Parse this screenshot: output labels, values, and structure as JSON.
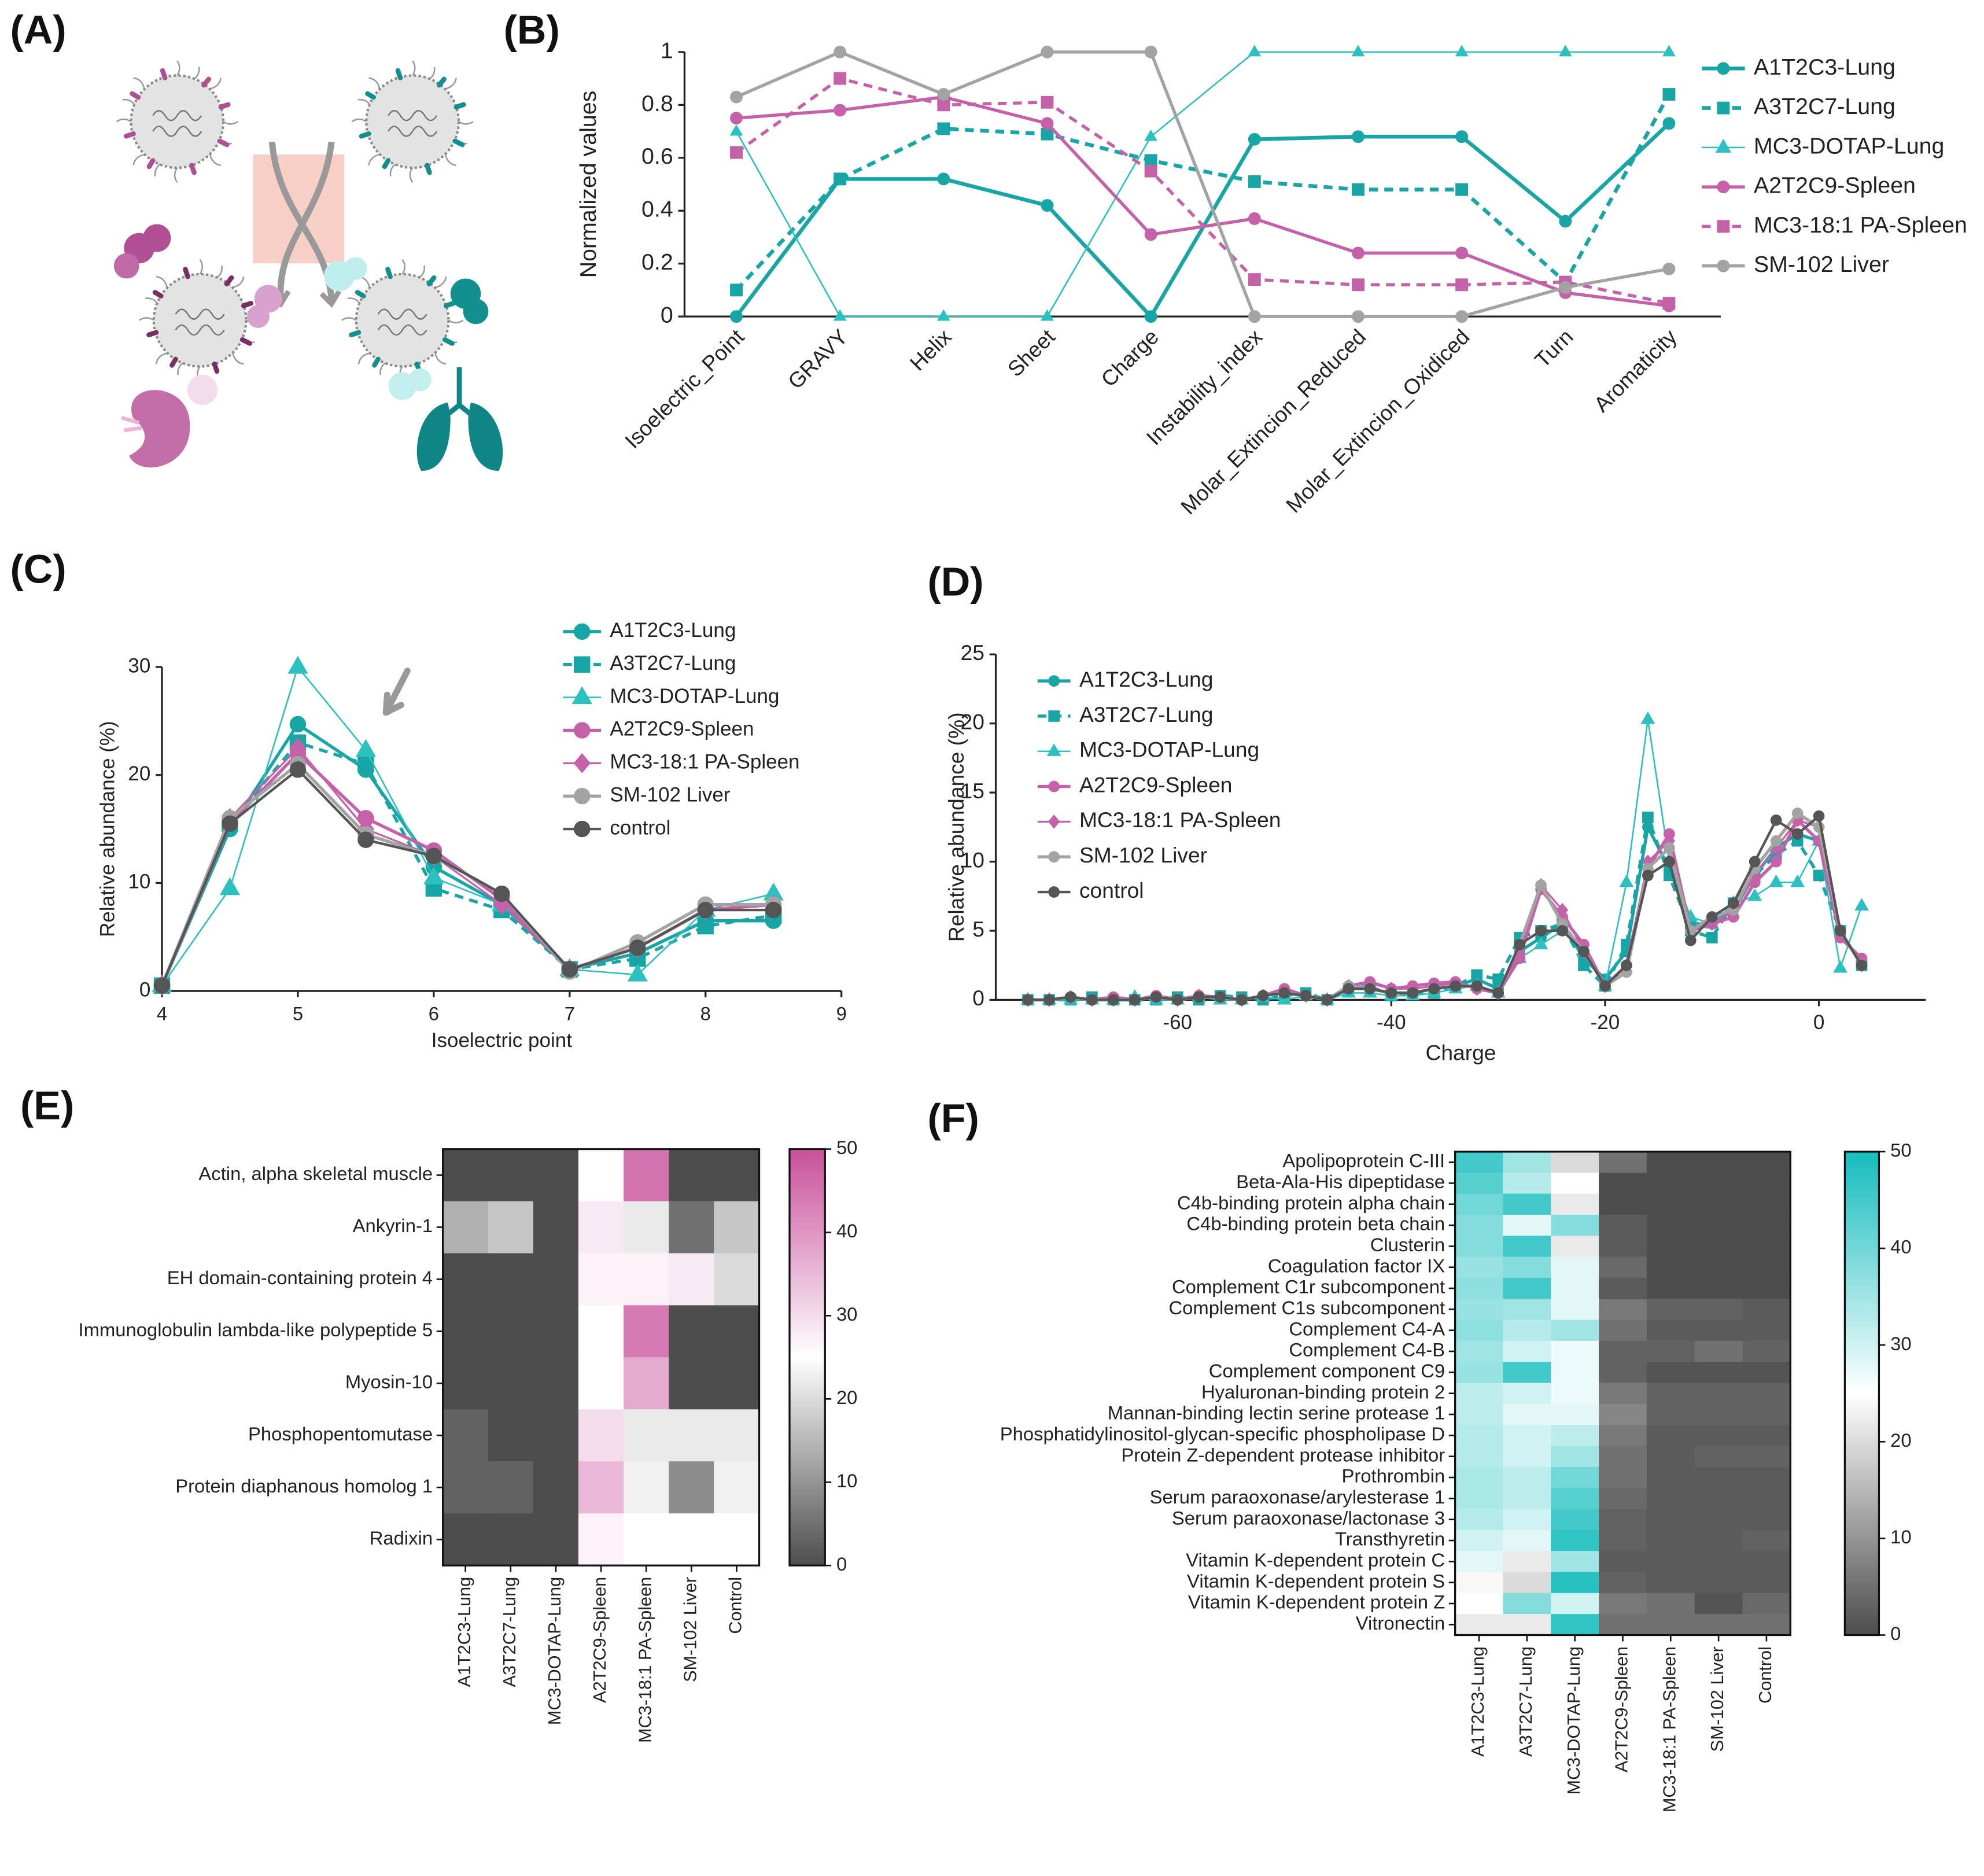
{
  "illustration": {
    "panel": "(A)"
  },
  "chart_data": [
    {
      "panel": "(B)",
      "type": "line",
      "y_label": "Normalized values",
      "categories": [
        "Isoelectric_Point",
        "GRAVY",
        "Helix",
        "Sheet",
        "Charge",
        "Instability_index",
        "Molar_Extincion_Reduced",
        "Molar_Extincion_Oxidiced",
        "Turn",
        "Aromaticity"
      ],
      "ylim": [
        0,
        1
      ],
      "yticks": [
        0,
        0.2,
        0.4,
        0.6,
        0.8,
        1
      ],
      "legend": "right",
      "series": [
        {
          "name": "A1T2C3-Lung",
          "color": "#17a5a5",
          "dash": "solid",
          "marker": "circle",
          "width": 3,
          "values": [
            0,
            0.52,
            0.52,
            0.42,
            0,
            0.67,
            0.68,
            0.68,
            0.36,
            0.73
          ]
        },
        {
          "name": "A3T2C7-Lung",
          "color": "#17a5a5",
          "dash": "dashed",
          "marker": "square",
          "width": 3,
          "values": [
            0.1,
            0.52,
            0.71,
            0.69,
            0.59,
            0.51,
            0.48,
            0.48,
            0.13,
            0.84
          ]
        },
        {
          "name": "MC3-DOTAP-Lung",
          "color": "#2cc0c0",
          "dash": "solid",
          "marker": "triangle",
          "width": 1.2,
          "values": [
            0.7,
            0,
            0,
            0,
            0.68,
            1,
            1,
            1,
            1,
            1
          ]
        },
        {
          "name": "A2T2C9-Spleen",
          "color": "#c461a8",
          "dash": "solid",
          "marker": "circle",
          "width": 2.5,
          "values": [
            0.75,
            0.78,
            0.83,
            0.73,
            0.31,
            0.37,
            0.24,
            0.24,
            0.09,
            0.04
          ]
        },
        {
          "name": "MC3-18:1 PA-Spleen",
          "color": "#c461a8",
          "dash": "dashed",
          "marker": "square",
          "width": 2.5,
          "values": [
            0.62,
            0.9,
            0.8,
            0.81,
            0.55,
            0.14,
            0.12,
            0.12,
            0.13,
            0.05
          ]
        },
        {
          "name": "SM-102 Liver",
          "color": "#a3a3a3",
          "dash": "solid",
          "marker": "circle",
          "width": 2.5,
          "values": [
            0.83,
            1,
            0.84,
            1,
            1,
            0,
            0,
            0,
            0.11,
            0.18
          ]
        }
      ]
    },
    {
      "panel": "(C)",
      "type": "line",
      "x_label": "Isoelectric point",
      "y_label": "Relative abundance (%)",
      "x": [
        4,
        4.5,
        5,
        5.5,
        6,
        6.5,
        7,
        7.5,
        8,
        8.5
      ],
      "xlim": [
        4,
        9
      ],
      "xticks": [
        4,
        5,
        6,
        7,
        8,
        9
      ],
      "ylim": [
        0,
        30
      ],
      "yticks": [
        0,
        10,
        20,
        30
      ],
      "legend": "upper right",
      "series": [
        {
          "name": "A1T2C3-Lung",
          "color": "#17a5a5",
          "dash": "solid",
          "marker": "circle",
          "width": 2.5,
          "values": [
            0.5,
            15,
            24.7,
            20.5,
            11.5,
            8,
            2,
            3.5,
            6.5,
            6.5
          ]
        },
        {
          "name": "A3T2C7-Lung",
          "color": "#17a5a5",
          "dash": "dashed",
          "marker": "square",
          "width": 2.5,
          "values": [
            0.5,
            15.5,
            23,
            21,
            9.5,
            7.5,
            2,
            3,
            6,
            7
          ]
        },
        {
          "name": "MC3-DOTAP-Lung",
          "color": "#2cc0c0",
          "dash": "solid",
          "marker": "triangle",
          "width": 1.2,
          "values": [
            0.5,
            9.5,
            30,
            22.3,
            10.5,
            8,
            2,
            1.5,
            7.5,
            9
          ]
        },
        {
          "name": "A2T2C9-Spleen",
          "color": "#c461a8",
          "dash": "solid",
          "marker": "circle",
          "width": 2.5,
          "values": [
            0.5,
            15.5,
            22,
            16,
            13,
            8.5,
            2,
            4,
            7.5,
            8
          ]
        },
        {
          "name": "MC3-18:1 PA-Spleen",
          "color": "#c461a8",
          "dash": "solid",
          "marker": "diamond",
          "width": 1.5,
          "values": [
            0.5,
            16,
            22.5,
            15,
            12.5,
            8,
            2,
            4,
            7.5,
            8
          ]
        },
        {
          "name": "SM-102 Liver",
          "color": "#a3a3a3",
          "dash": "solid",
          "marker": "circle",
          "width": 2.5,
          "values": [
            0.5,
            16,
            21,
            14.5,
            12.5,
            9,
            1.8,
            4.5,
            8,
            8
          ]
        },
        {
          "name": "control",
          "color": "#555555",
          "dash": "solid",
          "marker": "circle",
          "width": 2,
          "values": [
            0.5,
            15.5,
            20.5,
            14,
            12.5,
            9,
            2,
            4,
            7.5,
            7.5
          ]
        }
      ]
    },
    {
      "panel": "(D)",
      "type": "line",
      "x_label": "Charge",
      "y_label": "Relative abundance (%)",
      "x": [
        -74,
        -72,
        -70,
        -68,
        -66,
        -64,
        -62,
        -60,
        -58,
        -56,
        -54,
        -52,
        -50,
        -48,
        -46,
        -44,
        -42,
        -40,
        -38,
        -36,
        -34,
        -32,
        -30,
        -28,
        -26,
        -24,
        -22,
        -20,
        -18,
        -16,
        -14,
        -12,
        -10,
        -8,
        -6,
        -4,
        -2,
        0,
        2,
        4
      ],
      "xlim": [
        -77,
        10
      ],
      "xticks": [
        -60,
        -40,
        -20,
        0
      ],
      "ylim": [
        0,
        25
      ],
      "yticks": [
        0,
        5,
        10,
        15,
        20,
        25
      ],
      "legend": "upper left",
      "series": [
        {
          "name": "A1T2C3-Lung",
          "color": "#17a5a5",
          "dash": "solid",
          "marker": "circle",
          "width": 2.5,
          "values": [
            0,
            0,
            0.2,
            0,
            0,
            0,
            0.2,
            0,
            0.3,
            0.2,
            0,
            0.3,
            0.5,
            0.3,
            0,
            1,
            0.8,
            0.5,
            0.5,
            0.8,
            1,
            1.5,
            0.8,
            3.5,
            4.5,
            5.5,
            3,
            1.5,
            3.5,
            12.5,
            9.5,
            5.5,
            5.5,
            6.5,
            9,
            11,
            12,
            11.5,
            5,
            2.5
          ]
        },
        {
          "name": "A3T2C7-Lung",
          "color": "#17a5a5",
          "dash": "dashed",
          "marker": "square",
          "width": 2.5,
          "values": [
            0,
            0,
            0,
            0.2,
            0,
            0,
            0,
            0.2,
            0,
            0.3,
            0.2,
            0,
            0.3,
            0.5,
            0,
            0.8,
            1,
            0.3,
            0.5,
            0.5,
            1,
            1.8,
            1.5,
            4.5,
            5,
            5.5,
            2.5,
            1,
            4,
            13.2,
            9,
            5,
            4.5,
            7,
            9,
            10.5,
            11.5,
            9,
            5,
            2.5
          ]
        },
        {
          "name": "MC3-DOTAP-Lung",
          "color": "#2cc0c0",
          "dash": "solid",
          "marker": "triangle",
          "width": 1.2,
          "values": [
            0,
            0,
            0,
            0,
            0,
            0.2,
            0,
            0,
            0.2,
            0,
            0,
            0.2,
            0,
            0.3,
            0,
            0.5,
            0.5,
            0.3,
            0.3,
            0.5,
            0.8,
            1,
            0.5,
            3,
            4,
            5,
            3.5,
            1,
            8.5,
            20.3,
            10,
            6,
            5.5,
            7,
            7.5,
            8.5,
            8.5,
            11.5,
            2.3,
            6.8
          ]
        },
        {
          "name": "A2T2C9-Spleen",
          "color": "#c461a8",
          "dash": "solid",
          "marker": "circle",
          "width": 2.5,
          "values": [
            0,
            0,
            0.2,
            0,
            0.2,
            0,
            0.3,
            0,
            0.3,
            0.2,
            0,
            0.3,
            0.8,
            0.3,
            0,
            1,
            1.3,
            0.8,
            1,
            1.2,
            1.3,
            0.8,
            0.5,
            3,
            8,
            6,
            4,
            1,
            2.5,
            9.5,
            12,
            5,
            5.5,
            6,
            8.5,
            10,
            13,
            11.5,
            4.5,
            3
          ]
        },
        {
          "name": "MC3-18:1 PA-Spleen",
          "color": "#c461a8",
          "dash": "solid",
          "marker": "diamond",
          "width": 1.5,
          "values": [
            0,
            0,
            0.2,
            0,
            0,
            0,
            0.2,
            0,
            0.3,
            0.2,
            0,
            0.3,
            0.6,
            0.3,
            0,
            1,
            1.2,
            0.8,
            0.8,
            1,
            1.2,
            0.8,
            0.5,
            3.5,
            8.3,
            6.5,
            3.5,
            1,
            2.5,
            10,
            11.5,
            5,
            5.5,
            6.5,
            9,
            11,
            13,
            12.5,
            5,
            2.5
          ]
        },
        {
          "name": "SM-102 Liver",
          "color": "#a3a3a3",
          "dash": "solid",
          "marker": "circle",
          "width": 2.5,
          "values": [
            0,
            0,
            0.2,
            0,
            0,
            0,
            0.2,
            0,
            0.2,
            0.2,
            0,
            0.3,
            0.5,
            0.3,
            0,
            1,
            0.8,
            0.5,
            0.5,
            0.8,
            1,
            1,
            0.5,
            4,
            8.3,
            5.5,
            3.5,
            1,
            2,
            9.5,
            11,
            5,
            6,
            6.5,
            9.5,
            11.5,
            13.5,
            12.5,
            5,
            2.5
          ]
        },
        {
          "name": "control",
          "color": "#555555",
          "dash": "solid",
          "marker": "circle",
          "width": 2,
          "values": [
            0,
            0,
            0.2,
            0,
            0,
            0,
            0.2,
            0,
            0.2,
            0.2,
            0,
            0.3,
            0.5,
            0.3,
            0,
            0.8,
            0.8,
            0.5,
            0.5,
            0.8,
            1,
            1,
            0.5,
            4,
            5,
            5,
            3.5,
            1,
            2.5,
            9,
            10,
            4.3,
            6,
            7,
            10,
            13,
            12,
            13.3,
            5,
            2.5
          ]
        }
      ]
    },
    {
      "panel": "(E)",
      "type": "heatmap",
      "rows": [
        "Actin, alpha skeletal muscle",
        "Ankyrin-1",
        "EH domain-containing protein 4",
        "Immunoglobulin lambda-like polypeptide 5",
        "Myosin-10",
        "Phosphopentomutase",
        "Protein diaphanous homolog 1",
        "Radixin"
      ],
      "columns": [
        "A1T2C3-Lung",
        "A3T2C7-Lung",
        "MC3-DOTAP-Lung",
        "A2T2C9-Spleen",
        "MC3-18:1 PA-Spleen",
        "SM-102 Liver",
        "Control"
      ],
      "values": [
        [
          0,
          0,
          0,
          25,
          45,
          0,
          0
        ],
        [
          14,
          17,
          0,
          28,
          22,
          5,
          17
        ],
        [
          0,
          0,
          0,
          27,
          27,
          28,
          20
        ],
        [
          0,
          0,
          0,
          25,
          44,
          0,
          0
        ],
        [
          0,
          0,
          0,
          25,
          37,
          0,
          0
        ],
        [
          3,
          0,
          0,
          30,
          22,
          22,
          22
        ],
        [
          3,
          3,
          0,
          35,
          23,
          9,
          23
        ],
        [
          0,
          0,
          0,
          27,
          25,
          25,
          25
        ]
      ],
      "colorbar": {
        "lim": [
          0,
          50
        ],
        "ticks": [
          0,
          10,
          20,
          30,
          40,
          50
        ],
        "colors": [
          "#4d4d4d",
          "#ffffff",
          "#c8509a"
        ]
      }
    },
    {
      "panel": "(F)",
      "type": "heatmap",
      "rows": [
        "Apolipoprotein C-III",
        "Beta-Ala-His dipeptidase",
        "C4b-binding protein alpha chain",
        "C4b-binding protein beta chain",
        "Clusterin",
        "Coagulation factor IX",
        "Complement C1r subcomponent",
        "Complement C1s subcomponent",
        "Complement C4-A",
        "Complement C4-B",
        "Complement component C9",
        "Hyaluronan-binding protein 2",
        "Mannan-binding lectin serine protease 1",
        "Phosphatidylinositol-glycan-specific phospholipase D",
        "Protein Z-dependent protease inhibitor",
        "Prothrombin",
        "Serum paraoxonase/arylesterase 1",
        "Serum paraoxonase/lactonase 3",
        "Transthyretin",
        "Vitamin K-dependent protein C",
        "Vitamin K-dependent protein S",
        "Vitamin K-dependent protein Z",
        "Vitronectin"
      ],
      "columns": [
        "A1T2C3-Lung",
        "A3T2C7-Lung",
        "MC3-DOTAP-Lung",
        "A2T2C9-Spleen",
        "MC3-18:1 PA-Spleen",
        "SM-102 Liver",
        "Control"
      ],
      "values": [
        [
          45,
          35,
          20,
          5,
          0,
          0,
          0
        ],
        [
          43,
          33,
          25,
          0,
          0,
          0,
          0
        ],
        [
          40,
          45,
          22,
          0,
          0,
          0,
          0
        ],
        [
          38,
          28,
          38,
          2,
          0,
          0,
          0
        ],
        [
          38,
          45,
          22,
          2,
          0,
          0,
          0
        ],
        [
          36,
          38,
          28,
          4,
          0,
          0,
          0
        ],
        [
          37,
          45,
          28,
          2,
          0,
          0,
          0
        ],
        [
          36,
          35,
          28,
          6,
          3,
          3,
          2
        ],
        [
          37,
          33,
          35,
          5,
          2,
          2,
          2
        ],
        [
          35,
          30,
          27,
          3,
          3,
          5,
          3
        ],
        [
          36,
          45,
          27,
          3,
          1,
          1,
          1
        ],
        [
          32,
          30,
          27,
          6,
          3,
          3,
          3
        ],
        [
          32,
          28,
          28,
          8,
          3,
          3,
          3
        ],
        [
          33,
          30,
          32,
          6,
          2,
          2,
          2
        ],
        [
          33,
          30,
          35,
          5,
          2,
          3,
          3
        ],
        [
          34,
          32,
          40,
          5,
          2,
          2,
          2
        ],
        [
          34,
          32,
          43,
          4,
          2,
          2,
          2
        ],
        [
          33,
          30,
          45,
          3,
          2,
          2,
          2
        ],
        [
          30,
          28,
          47,
          3,
          2,
          2,
          3
        ],
        [
          28,
          22,
          35,
          2,
          2,
          2,
          2
        ],
        [
          24,
          20,
          48,
          3,
          2,
          2,
          2
        ],
        [
          25,
          38,
          30,
          6,
          5,
          1,
          4
        ],
        [
          22,
          22,
          47,
          5,
          5,
          5,
          5
        ]
      ],
      "colorbar": {
        "lim": [
          0,
          50
        ],
        "ticks": [
          0,
          10,
          20,
          30,
          40,
          50
        ],
        "colors": [
          "#4d4d4d",
          "#ffffff",
          "#14bcbc"
        ]
      }
    }
  ]
}
